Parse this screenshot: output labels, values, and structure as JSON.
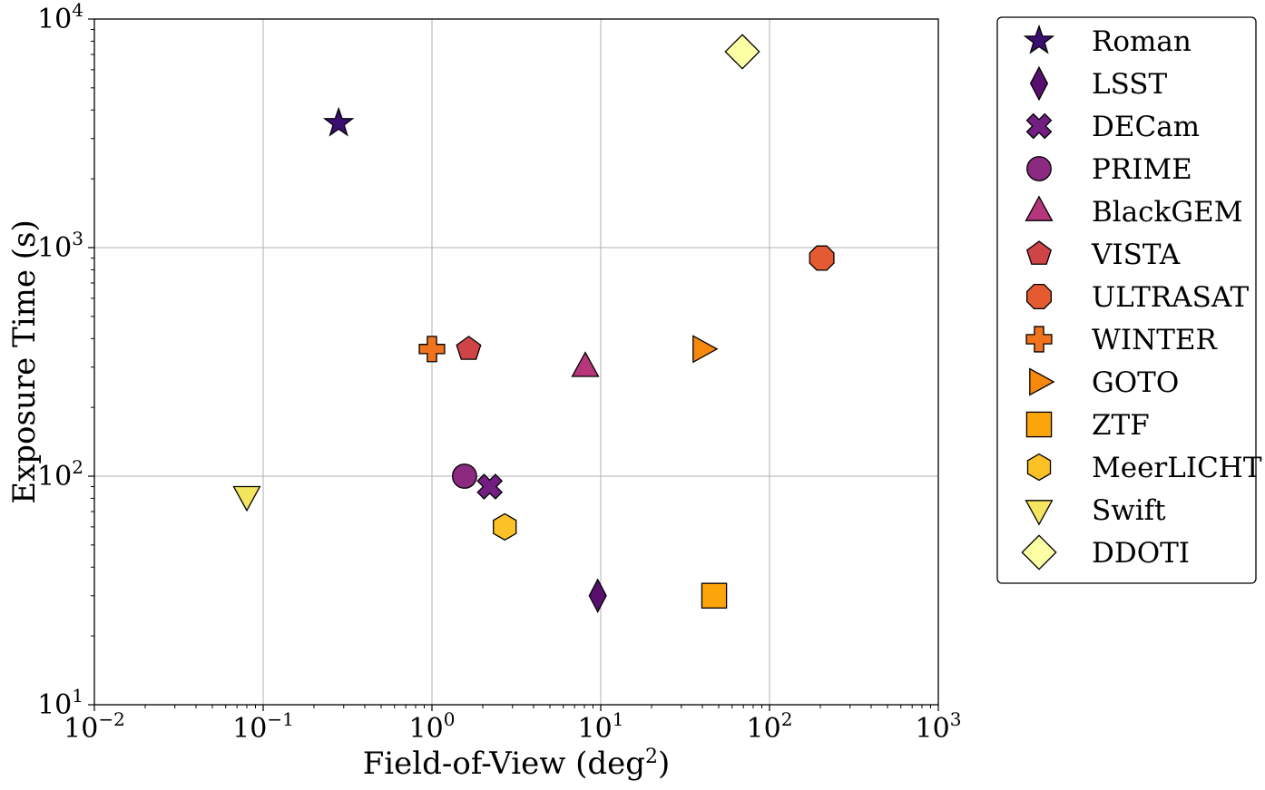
{
  "chart_data": {
    "type": "scatter",
    "xlabel": "Field-of-View (deg",
    "xlabel_sup": "2",
    "xlabel_end": ")",
    "ylabel": "Exposure Time (s)",
    "xscale": "log",
    "yscale": "log",
    "xlim": [
      0.01,
      1000
    ],
    "ylim": [
      10,
      10000
    ],
    "grid": true,
    "legend_position": "outside right, top",
    "x_ticks": [
      {
        "value": 0.01,
        "base": "10",
        "exp": "−2"
      },
      {
        "value": 0.1,
        "base": "10",
        "exp": "−1"
      },
      {
        "value": 1,
        "base": "10",
        "exp": "0"
      },
      {
        "value": 10,
        "base": "10",
        "exp": "1"
      },
      {
        "value": 100,
        "base": "10",
        "exp": "2"
      },
      {
        "value": 1000,
        "base": "10",
        "exp": "3"
      }
    ],
    "y_ticks": [
      {
        "value": 10,
        "base": "10",
        "exp": "1"
      },
      {
        "value": 100,
        "base": "10",
        "exp": "2"
      },
      {
        "value": 1000,
        "base": "10",
        "exp": "3"
      },
      {
        "value": 10000,
        "base": "10",
        "exp": "4"
      }
    ],
    "series": [
      {
        "name": "Roman",
        "marker": "star",
        "color": "#3b0f70",
        "x": 0.28,
        "y": 3500
      },
      {
        "name": "LSST",
        "marker": "thin-diamond",
        "color": "#57106e",
        "x": 9.6,
        "y": 30
      },
      {
        "name": "DECam",
        "marker": "x-filled",
        "color": "#721f81",
        "x": 2.2,
        "y": 90
      },
      {
        "name": "PRIME",
        "marker": "circle",
        "color": "#8c2981",
        "x": 1.56,
        "y": 100
      },
      {
        "name": "BlackGEM",
        "marker": "triangle-up",
        "color": "#b5367a",
        "x": 8.1,
        "y": 300
      },
      {
        "name": "VISTA",
        "marker": "pentagon",
        "color": "#cf4446",
        "x": 1.65,
        "y": 360
      },
      {
        "name": "ULTRASAT",
        "marker": "octagon",
        "color": "#e45a31",
        "x": 204,
        "y": 900
      },
      {
        "name": "WINTER",
        "marker": "plus-filled",
        "color": "#f1731d",
        "x": 1.0,
        "y": 360
      },
      {
        "name": "GOTO",
        "marker": "triangle-right",
        "color": "#f8870e",
        "x": 40,
        "y": 360
      },
      {
        "name": "ZTF",
        "marker": "square",
        "color": "#fca50a",
        "x": 47,
        "y": 30
      },
      {
        "name": "MeerLICHT",
        "marker": "hexagon",
        "color": "#fbc127",
        "x": 2.7,
        "y": 60
      },
      {
        "name": "Swift",
        "marker": "triangle-down",
        "color": "#f3e55d",
        "x": 0.08,
        "y": 82
      },
      {
        "name": "DDOTI",
        "marker": "diamond",
        "color": "#fcffa4",
        "x": 69,
        "y": 7200
      }
    ]
  }
}
